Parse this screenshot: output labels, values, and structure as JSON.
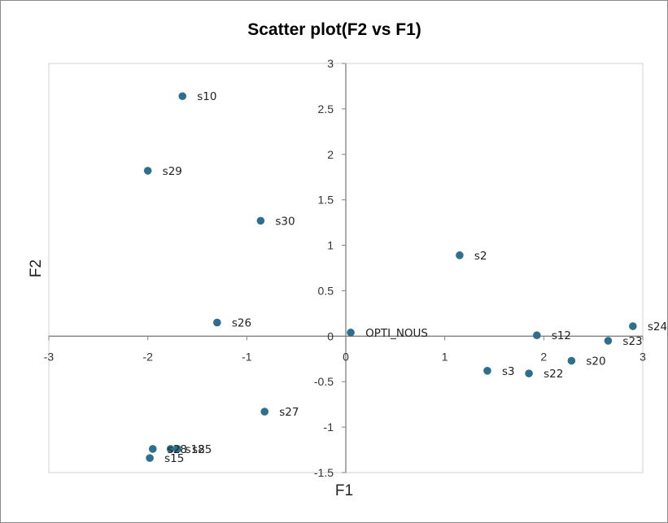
{
  "chart_data": {
    "type": "scatter",
    "title": "Scatter plot(F2 vs F1)",
    "xlabel": "F1",
    "ylabel": "F2",
    "xlim": [
      -3,
      3
    ],
    "ylim": [
      -1.5,
      3
    ],
    "xticks": [
      -3,
      -2,
      -1,
      0,
      1,
      2,
      3
    ],
    "yticks": [
      -1.5,
      -1,
      -0.5,
      0,
      0.5,
      1,
      1.5,
      2,
      2.5,
      3
    ],
    "xtick_labels": [
      "-3",
      "-2",
      "-1",
      "0",
      "1",
      "2",
      "3"
    ],
    "ytick_labels": [
      "-1.5",
      "-1",
      "-0.5",
      "0",
      "0.5",
      "1",
      "1.5",
      "2",
      "2.5",
      "3"
    ],
    "grid": false,
    "marker_color": "#2e6f8e",
    "points": [
      {
        "label": "s10",
        "x": -1.65,
        "y": 2.64
      },
      {
        "label": "s29",
        "x": -2.0,
        "y": 1.82
      },
      {
        "label": "s30",
        "x": -0.86,
        "y": 1.27
      },
      {
        "label": "s26",
        "x": -1.3,
        "y": 0.15
      },
      {
        "label": "s27",
        "x": -0.82,
        "y": -0.83
      },
      {
        "label": "s28",
        "x": -1.95,
        "y": -1.24
      },
      {
        "label": "s18",
        "x": -1.77,
        "y": -1.24
      },
      {
        "label": "s25",
        "x": -1.7,
        "y": -1.24
      },
      {
        "label": "s15",
        "x": -1.98,
        "y": -1.34
      },
      {
        "label": "s2",
        "x": 1.15,
        "y": 0.89
      },
      {
        "label": "OPTI_NOUS",
        "x": 0.05,
        "y": 0.04
      },
      {
        "label": "s12",
        "x": 1.93,
        "y": 0.01
      },
      {
        "label": "s24",
        "x": 2.9,
        "y": 0.11
      },
      {
        "label": "s23",
        "x": 2.65,
        "y": -0.05
      },
      {
        "label": "s20",
        "x": 2.28,
        "y": -0.27
      },
      {
        "label": "s3",
        "x": 1.43,
        "y": -0.38
      },
      {
        "label": "s22",
        "x": 1.85,
        "y": -0.41
      }
    ]
  }
}
